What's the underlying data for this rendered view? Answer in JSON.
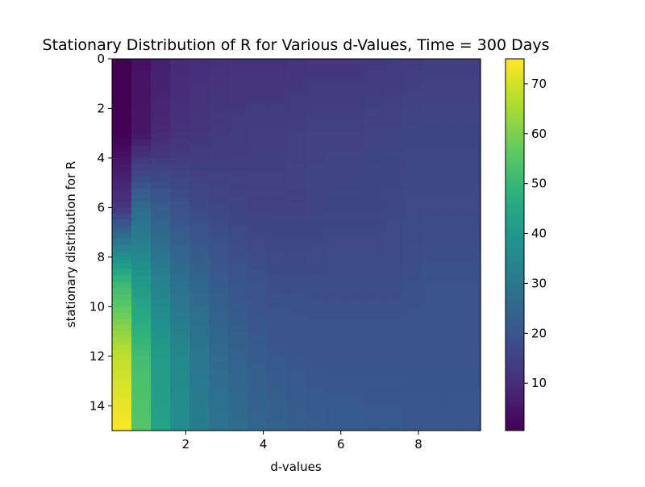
{
  "chart_data": {
    "type": "heatmap",
    "title": "Stationary Distribution of R for Various d-Values, Time = 300 Days",
    "xlabel": "d-values",
    "ylabel": "stationary distribution for R",
    "xlim": [
      0.1,
      9.6
    ],
    "ylim": [
      15,
      0
    ],
    "y_axis_inverted": true,
    "x_ticks": [
      2,
      4,
      6,
      8
    ],
    "x_tick_labels": [
      "2",
      "4",
      "6",
      "8"
    ],
    "y_ticks": [
      0,
      2,
      4,
      6,
      8,
      10,
      12,
      14
    ],
    "y_tick_labels": [
      "0",
      "2",
      "4",
      "6",
      "8",
      "10",
      "12",
      "14"
    ],
    "d_values": [
      0.1,
      0.6,
      1.1,
      1.6,
      2.1,
      2.6,
      3.1,
      3.6,
      4.1,
      4.6,
      5.1,
      5.6,
      6.1,
      6.6,
      7.1,
      7.6,
      8.1,
      8.6,
      9.1
    ],
    "r_values": [
      0,
      3,
      6,
      9,
      12,
      15
    ],
    "values": [
      [
        0.5,
        4,
        7,
        9,
        10,
        10.5,
        11,
        11,
        11,
        11.5,
        12,
        12,
        12,
        12.5,
        13,
        13.5,
        14,
        14,
        14
      ],
      [
        0.5,
        5,
        9,
        11,
        12,
        13,
        13.5,
        14,
        14,
        14.5,
        15,
        15,
        15,
        15.5,
        15.5,
        16,
        16,
        16,
        16
      ],
      [
        12,
        26,
        22,
        19,
        17,
        16,
        15.5,
        15,
        15,
        15,
        15.5,
        16,
        16,
        16,
        16.5,
        17,
        17,
        17,
        17
      ],
      [
        50,
        40,
        33,
        28,
        25,
        22,
        20,
        19,
        18,
        18,
        18,
        18,
        18,
        18,
        18,
        18.5,
        19,
        19,
        19
      ],
      [
        68,
        52,
        41,
        35,
        30,
        26,
        24,
        22,
        21,
        20.5,
        20,
        20,
        20,
        20,
        20,
        20,
        20,
        20,
        20
      ],
      [
        75,
        55,
        43,
        37,
        32,
        29,
        27,
        25,
        24,
        23,
        22.5,
        22,
        22,
        21.5,
        21.5,
        21,
        21,
        21,
        21
      ]
    ],
    "colorbar": {
      "min": 0.5,
      "max": 75,
      "ticks": [
        10,
        20,
        30,
        40,
        50,
        60,
        70
      ],
      "tick_labels": [
        "10",
        "20",
        "30",
        "40",
        "50",
        "60",
        "70"
      ],
      "colormap": "viridis"
    },
    "grid": false,
    "legend": "none"
  }
}
